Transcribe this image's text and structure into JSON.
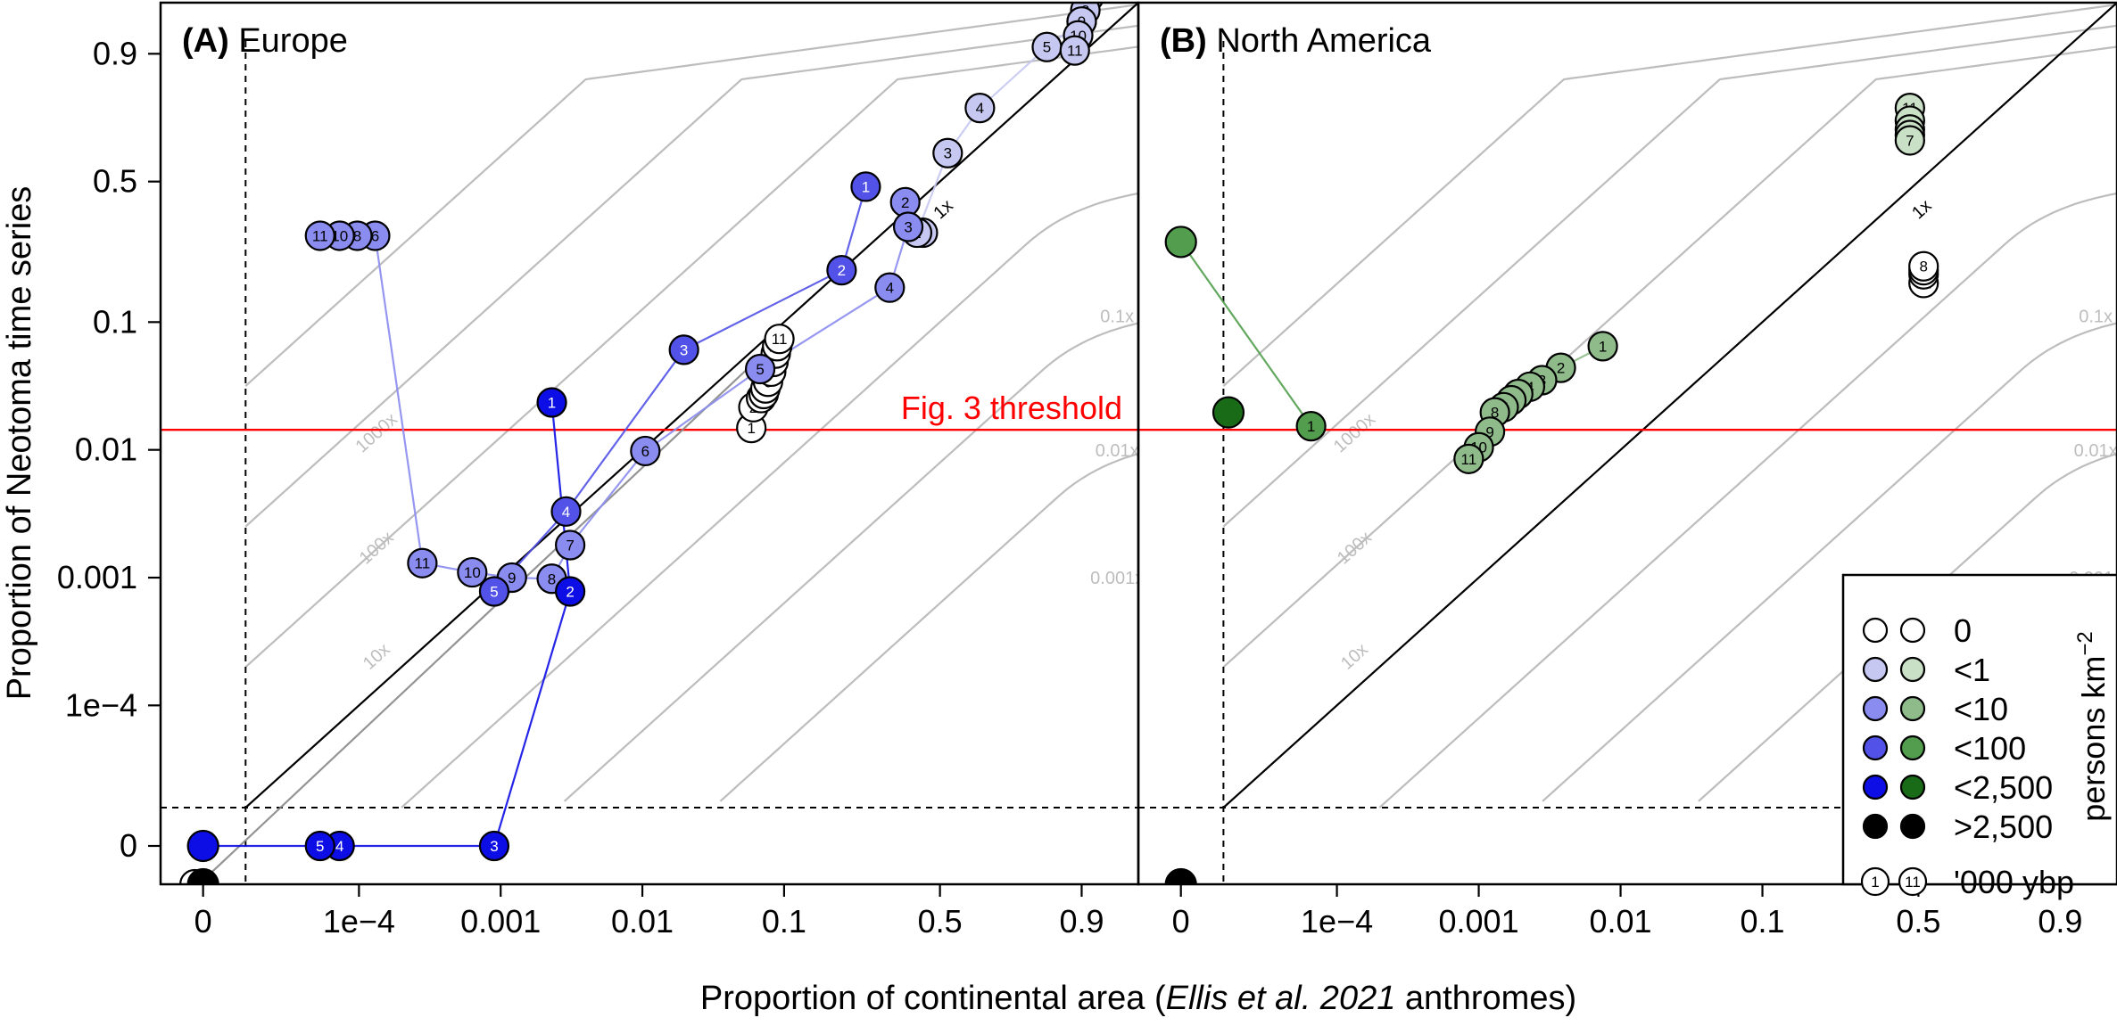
{
  "chart_data": {
    "type": "scatter",
    "xlabel_parts": [
      "Proportion of continental area (",
      "Ellis et al. 2021",
      " anthromes)"
    ],
    "ylabel": "Proportion of Neotoma time series",
    "x_tick_labels": [
      "0",
      "1e−4",
      "0.001",
      "0.01",
      "0.1",
      "0.5",
      "0.9"
    ],
    "y_tick_labels": [
      "0",
      "1e−4",
      "0.001",
      "0.01",
      "0.1",
      "0.5",
      "0.9"
    ],
    "threshold": {
      "label": "Fig. 3 threshold",
      "y": 0.0145,
      "color": "#ff0000"
    },
    "contour_labels": [
      "1000x",
      "100x",
      "10x",
      "1x",
      "0.1x",
      "0.01x",
      "0.001x"
    ],
    "panels": [
      {
        "id": "A",
        "title_bold": "(A)",
        "title": "Europe",
        "series": [
          {
            "category": "0",
            "color": "#ffffff",
            "points": [
              {
                "ky": 1,
                "x": 0.06,
                "y": 0.015
              },
              {
                "ky": 2,
                "x": 0.062,
                "y": 0.022
              },
              {
                "ky": 3,
                "x": 0.07,
                "y": 0.026
              },
              {
                "ky": 4,
                "x": 0.073,
                "y": 0.028
              },
              {
                "ky": 5,
                "x": 0.075,
                "y": 0.031
              },
              {
                "ky": 6,
                "x": 0.078,
                "y": 0.035
              },
              {
                "ky": 7,
                "x": 0.082,
                "y": 0.042
              },
              {
                "ky": 8,
                "x": 0.085,
                "y": 0.05
              },
              {
                "ky": 9,
                "x": 0.088,
                "y": 0.058
              },
              {
                "ky": 10,
                "x": 0.09,
                "y": 0.066
              },
              {
                "ky": 11,
                "x": 0.093,
                "y": 0.075
              },
              {
                "ky": 2,
                "x": -0.05,
                "y": -0.5
              },
              {
                "ky": 1,
                "x": -0.1,
                "y": -0.5
              }
            ]
          },
          {
            "category": "<1",
            "color": "#c6c8f1",
            "points": [
              {
                "ky": 1,
                "x": 0.44,
                "y": 0.31
              },
              {
                "ky": 2,
                "x": 0.42,
                "y": 0.31
              },
              {
                "ky": 3,
                "x": 0.53,
                "y": 0.62
              },
              {
                "ky": 4,
                "x": 0.65,
                "y": 0.78
              },
              {
                "ky": 5,
                "x": 0.84,
                "y": 0.91
              },
              {
                "ky": 6,
                "x": 0.9,
                "y": 0.94
              },
              {
                "ky": 7,
                "x": 0.91,
                "y": 0.96
              },
              {
                "ky": 8,
                "x": 0.905,
                "y": 0.95
              },
              {
                "ky": 9,
                "x": 0.9,
                "y": 0.94
              },
              {
                "ky": 10,
                "x": 0.895,
                "y": 0.925
              },
              {
                "ky": 11,
                "x": 0.89,
                "y": 0.905
              }
            ]
          },
          {
            "category": "<10",
            "color": "#8a8cf0",
            "points": [
              {
                "ky": 2,
                "x": 0.38,
                "y": 0.42
              },
              {
                "ky": 3,
                "x": 0.39,
                "y": 0.33
              },
              {
                "ky": 4,
                "x": 0.33,
                "y": 0.16
              },
              {
                "ky": 5,
                "x": 0.069,
                "y": 0.044
              },
              {
                "ky": 6,
                "x": 0.0105,
                "y": 0.0098
              },
              {
                "ky": 7,
                "x": 0.0031,
                "y": 0.0018
              },
              {
                "ky": 8,
                "x": 0.0023,
                "y": 0.00098
              },
              {
                "ky": 9,
                "x": 0.0012,
                "y": 0.001
              },
              {
                "ky": 10,
                "x": 0.00063,
                "y": 0.0011
              },
              {
                "ky": 11,
                "x": 0.00028,
                "y": 0.0013
              },
              {
                "ky": 6,
                "x": 0.00013,
                "y": 0.3
              },
              {
                "ky": 8,
                "x": 9.5e-05,
                "y": 0.3
              },
              {
                "ky": 10,
                "x": 5.5e-05,
                "y": 0.3
              },
              {
                "ky": 11,
                "x": 3e-05,
                "y": 0.3
              }
            ]
          },
          {
            "category": "<100",
            "color": "#5252e8",
            "points": [
              {
                "ky": 1,
                "x": 0.26,
                "y": 0.48
              },
              {
                "ky": 2,
                "x": 0.2,
                "y": 0.2
              },
              {
                "ky": 3,
                "x": 0.02,
                "y": 0.062
              },
              {
                "ky": 4,
                "x": 0.0029,
                "y": 0.0033
              },
              {
                "ky": 5,
                "x": 0.0009,
                "y": 0.00078
              }
            ]
          },
          {
            "category": "<2,500",
            "color": "#0d0de6",
            "points": [
              {
                "ky": 1,
                "x": 0.0023,
                "y": 0.024
              },
              {
                "ky": 2,
                "x": 0.0031,
                "y": 0.00078
              },
              {
                "ky": 3,
                "x": 0.0009,
                "y": 0
              },
              {
                "ky": 4,
                "x": 5.5e-05,
                "y": 0
              },
              {
                "ky": 5,
                "x": 3e-05,
                "y": 0
              },
              {
                "ky": 0,
                "x": 0,
                "y": 0
              }
            ]
          },
          {
            "category": ">2,500",
            "color": "#000000",
            "points": [
              {
                "ky": 0,
                "x": 0,
                "y": -0.5
              }
            ]
          }
        ]
      },
      {
        "id": "B",
        "title_bold": "(B)",
        "title": "North America",
        "series": [
          {
            "category": "0",
            "color": "#ffffff",
            "points": [
              {
                "ky": 11,
                "x": 0.52,
                "y": 0.17
              },
              {
                "ky": 10,
                "x": 0.52,
                "y": 0.19
              },
              {
                "ky": 9,
                "x": 0.52,
                "y": 0.2
              },
              {
                "ky": 8,
                "x": 0.52,
                "y": 0.21
              }
            ]
          },
          {
            "category": "<1",
            "color": "#c9dfc6",
            "points": [
              {
                "ky": 11,
                "x": 0.47,
                "y": 0.78
              },
              {
                "ky": 10,
                "x": 0.47,
                "y": 0.74
              },
              {
                "ky": 9,
                "x": 0.47,
                "y": 0.71
              },
              {
                "ky": 8,
                "x": 0.47,
                "y": 0.69
              },
              {
                "ky": 7,
                "x": 0.47,
                "y": 0.67
              }
            ]
          },
          {
            "category": "<10",
            "color": "#8fbb8b",
            "points": [
              {
                "ky": 1,
                "x": 0.0075,
                "y": 0.066
              },
              {
                "ky": 2,
                "x": 0.0038,
                "y": 0.045
              },
              {
                "ky": 3,
                "x": 0.0028,
                "y": 0.036
              },
              {
                "ky": 4,
                "x": 0.0023,
                "y": 0.032
              },
              {
                "ky": 5,
                "x": 0.0019,
                "y": 0.028
              },
              {
                "ky": 6,
                "x": 0.0017,
                "y": 0.025
              },
              {
                "ky": 7,
                "x": 0.0015,
                "y": 0.022
              },
              {
                "ky": 8,
                "x": 0.0013,
                "y": 0.02
              },
              {
                "ky": 9,
                "x": 0.0012,
                "y": 0.014
              },
              {
                "ky": 10,
                "x": 0.001,
                "y": 0.0105
              },
              {
                "ky": 11,
                "x": 0.00085,
                "y": 0.0085
              }
            ]
          },
          {
            "category": "<100",
            "color": "#529e4e",
            "points": [
              {
                "ky": 1,
                "x": 4.5e-05,
                "y": 0.0155
              },
              {
                "ky": 0,
                "x": 0,
                "y": 0.28
              }
            ]
          },
          {
            "category": "<2,500",
            "color": "#1a6b17",
            "points": [
              {
                "ky": 0,
                "x": 3.5e-06,
                "y": 0.02
              }
            ]
          },
          {
            "category": ">2,500",
            "color": "#000000",
            "points": [
              {
                "ky": 0,
                "x": 0,
                "y": -0.5
              }
            ]
          }
        ]
      }
    ],
    "legend": {
      "position": "bottom-right",
      "items": [
        {
          "label": "0",
          "europe_color": "#ffffff",
          "na_color": "#ffffff"
        },
        {
          "label": "<1",
          "europe_color": "#c6c8f1",
          "na_color": "#c9dfc6"
        },
        {
          "label": "<10",
          "europe_color": "#8a8cf0",
          "na_color": "#8fbb8b"
        },
        {
          "label": "<100",
          "europe_color": "#5252e8",
          "na_color": "#529e4e"
        },
        {
          "label": "<2,500",
          "europe_color": "#0d0de6",
          "na_color": "#1a6b17"
        },
        {
          "label": ">2,500",
          "europe_color": "#000000",
          "na_color": "#000000"
        }
      ],
      "age_label": "'000 ybp",
      "age_examples": [
        "1",
        "11"
      ],
      "units_label": "persons km",
      "units_exponent": "−2"
    }
  }
}
